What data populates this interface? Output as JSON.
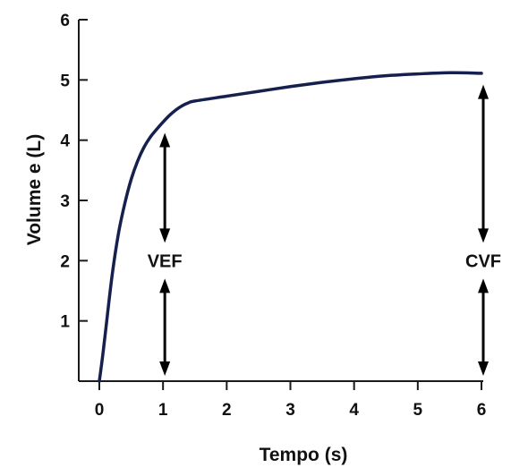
{
  "chart_data": {
    "type": "line",
    "title": "",
    "xlabel": "Tempo (s)",
    "ylabel": "Volume e (L)",
    "xlim": [
      0,
      6
    ],
    "ylim": [
      0,
      6
    ],
    "xticks": [
      "0",
      "1",
      "2",
      "3",
      "4",
      "5",
      "6"
    ],
    "yticks": [
      "1",
      "2",
      "3",
      "4",
      "5",
      "6"
    ],
    "grid": false,
    "legend": "none",
    "line_color": "#15204f",
    "series": [
      {
        "x": [
          0,
          0.05,
          0.1,
          0.2,
          0.3,
          0.4,
          0.5,
          0.6,
          0.7,
          0.8,
          0.9,
          1.0,
          1.1,
          1.2,
          1.3,
          1.4,
          1.5,
          2.0,
          2.5,
          3.0,
          3.5,
          4.0,
          4.5,
          5.0,
          5.5,
          6.0
        ],
        "y": [
          0,
          0.4,
          0.85,
          1.75,
          2.45,
          2.95,
          3.35,
          3.65,
          3.88,
          4.05,
          4.18,
          4.3,
          4.41,
          4.5,
          4.57,
          4.62,
          4.65,
          4.73,
          4.81,
          4.89,
          4.96,
          5.02,
          5.07,
          5.1,
          5.12,
          5.11
        ]
      }
    ],
    "annotations": [
      {
        "label": "VEF",
        "x": 1,
        "y_top": 4.3,
        "y_bottom": 0,
        "label_y": 2
      },
      {
        "label": "CVF",
        "x": 6,
        "y_top": 5.1,
        "y_bottom": 0,
        "label_y": 2
      }
    ]
  }
}
